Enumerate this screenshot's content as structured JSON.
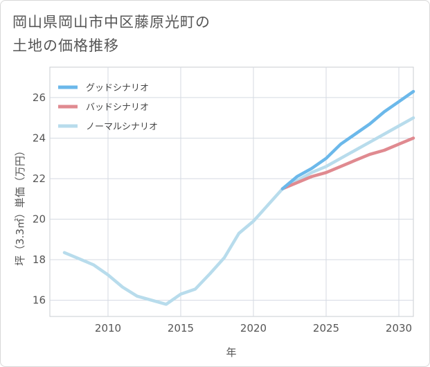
{
  "title": {
    "line1": "岡山県岡山市中区藤原光町の",
    "line2": "土地の価格推移"
  },
  "chart_data": {
    "type": "line",
    "xlabel": "年",
    "ylabel": "坪（3.3㎡）単価（万円）",
    "xlim": [
      2006,
      2031
    ],
    "ylim": [
      15.2,
      27.5
    ],
    "xticks": [
      2010,
      2015,
      2020,
      2025,
      2030
    ],
    "yticks": [
      16,
      18,
      20,
      22,
      24,
      26
    ],
    "legend_position": "top-left",
    "series": [
      {
        "name": "グッドシナリオ",
        "color": "#6bb8ea",
        "x": [
          2022,
          2023,
          2024,
          2025,
          2026,
          2027,
          2028,
          2029,
          2030,
          2031
        ],
        "y": [
          21.5,
          22.1,
          22.5,
          23.0,
          23.7,
          24.2,
          24.7,
          25.3,
          25.8,
          26.3
        ]
      },
      {
        "name": "バッドシナリオ",
        "color": "#e08a90",
        "x": [
          2022,
          2023,
          2024,
          2025,
          2026,
          2027,
          2028,
          2029,
          2030,
          2031
        ],
        "y": [
          21.5,
          21.8,
          22.1,
          22.3,
          22.6,
          22.9,
          23.2,
          23.4,
          23.7,
          24.0
        ]
      },
      {
        "name": "ノーマルシナリオ",
        "color": "#b8dcec",
        "x": [
          2007,
          2008,
          2009,
          2010,
          2011,
          2012,
          2013,
          2014,
          2015,
          2016,
          2017,
          2018,
          2019,
          2020,
          2021,
          2022,
          2023,
          2024,
          2025,
          2026,
          2027,
          2028,
          2029,
          2030,
          2031
        ],
        "y": [
          18.35,
          18.05,
          17.75,
          17.25,
          16.65,
          16.2,
          16.0,
          15.8,
          16.3,
          16.55,
          17.3,
          18.1,
          19.3,
          19.9,
          20.7,
          21.5,
          21.9,
          22.3,
          22.6,
          23.0,
          23.4,
          23.8,
          24.2,
          24.6,
          25.0
        ]
      }
    ]
  }
}
